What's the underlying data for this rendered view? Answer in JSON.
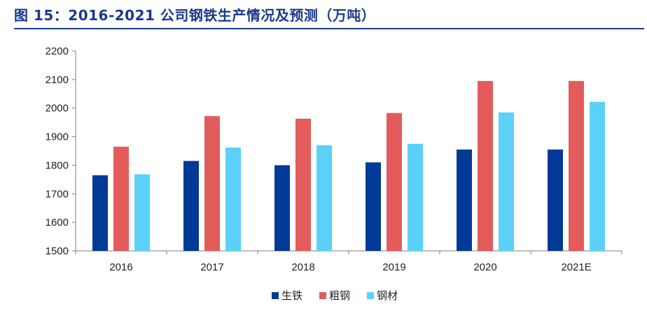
{
  "header": {
    "title": "图 15：2016-2021 公司钢铁生产情况及预测（万吨）"
  },
  "chart_data": {
    "type": "bar",
    "title": "图 15：2016-2021 公司钢铁生产情况及预测（万吨）",
    "xlabel": "",
    "ylabel": "",
    "categories": [
      "2016",
      "2017",
      "2018",
      "2019",
      "2020",
      "2021E"
    ],
    "ylim": [
      1500,
      2200
    ],
    "yticks": [
      1500,
      1600,
      1700,
      1800,
      1900,
      2000,
      2100,
      2200
    ],
    "grid": false,
    "legend_position": "bottom",
    "series": [
      {
        "name": "生铁",
        "color": "#003a96",
        "values": [
          1765,
          1815,
          1800,
          1810,
          1855,
          1855
        ]
      },
      {
        "name": "粗钢",
        "color": "#e45b5b",
        "values": [
          1865,
          1972,
          1963,
          1983,
          2095,
          2095
        ]
      },
      {
        "name": "钢材",
        "color": "#5bd1f9",
        "values": [
          1768,
          1862,
          1870,
          1875,
          1985,
          2022
        ]
      }
    ]
  }
}
